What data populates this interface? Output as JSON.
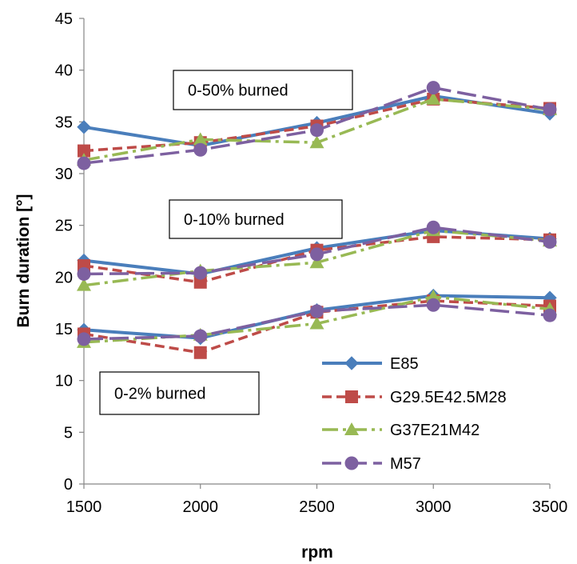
{
  "chart_data": {
    "type": "line",
    "xlabel": "rpm",
    "ylabel": "Burn duration [°]",
    "x": [
      1500,
      2000,
      2500,
      3000,
      3500
    ],
    "xlim": [
      1500,
      3500
    ],
    "ylim": [
      0,
      45
    ],
    "yticks": [
      0,
      5,
      10,
      15,
      20,
      25,
      30,
      35,
      40,
      45
    ],
    "xticks": [
      1500,
      2000,
      2500,
      3000,
      3500
    ],
    "grid": false,
    "legend_position": "bottom-right",
    "annotations": [
      "0-50% burned",
      "0-10% burned",
      "0-2% burned"
    ],
    "series": [
      {
        "name": "E85",
        "color": "#4a7ebb",
        "dash": "solid",
        "marker": "diamond",
        "groups": [
          [
            14.9,
            14.1,
            16.8,
            18.2,
            18.0
          ],
          [
            21.6,
            20.3,
            22.8,
            24.5,
            23.7
          ],
          [
            34.5,
            32.7,
            34.9,
            37.5,
            35.8
          ]
        ]
      },
      {
        "name": "G29.5E42.5M28",
        "color": "#be4b48",
        "dash": "dashed",
        "marker": "square",
        "groups": [
          [
            14.5,
            12.7,
            16.6,
            17.7,
            17.2
          ],
          [
            21.1,
            19.5,
            22.6,
            23.9,
            23.6
          ],
          [
            32.2,
            33.0,
            34.6,
            37.2,
            36.3
          ]
        ]
      },
      {
        "name": "G37E21M42",
        "color": "#98b954",
        "dash": "dashdot",
        "marker": "triangle",
        "groups": [
          [
            13.7,
            14.4,
            15.5,
            18.1,
            16.9
          ],
          [
            19.2,
            20.6,
            21.4,
            24.5,
            23.5
          ],
          [
            31.3,
            33.3,
            33.0,
            37.2,
            36.2
          ]
        ]
      },
      {
        "name": "M57",
        "color": "#7d60a0",
        "dash": "longdash",
        "marker": "circle",
        "groups": [
          [
            14.0,
            14.3,
            16.7,
            17.3,
            16.3
          ],
          [
            20.3,
            20.4,
            22.2,
            24.8,
            23.4
          ],
          [
            31.0,
            32.3,
            34.2,
            38.3,
            36.2
          ]
        ]
      }
    ]
  }
}
